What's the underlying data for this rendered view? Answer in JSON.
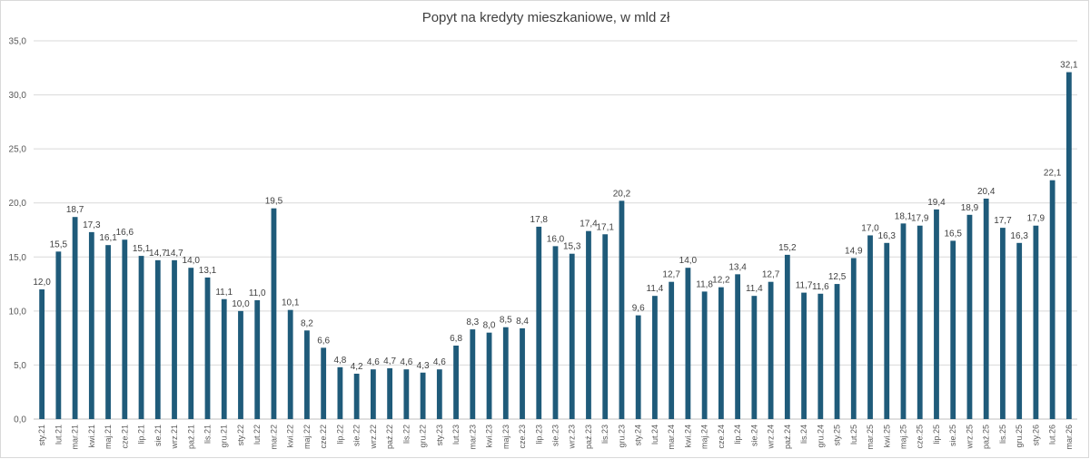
{
  "chart_data": {
    "type": "bar",
    "title": "Popyt na kredyty mieszkaniowe, w mld zł",
    "xlabel": "",
    "ylabel": "",
    "ylim": [
      0,
      35
    ],
    "yticks": [
      "0,0",
      "5,0",
      "10,0",
      "15,0",
      "20,0",
      "25,0",
      "30,0",
      "35,0"
    ],
    "grid": true,
    "bar_color": "#1f5b7a",
    "categories": [
      "sty.21",
      "lut.21",
      "mar.21",
      "kwi.21",
      "maj.21",
      "cze.21",
      "lip.21",
      "sie.21",
      "wrz.21",
      "paź.21",
      "lis.21",
      "gru.21",
      "sty.22",
      "lut.22",
      "mar.22",
      "kwi.22",
      "maj.22",
      "cze.22",
      "lip.22",
      "sie.22",
      "wrz.22",
      "paź.22",
      "lis.22",
      "gru.22",
      "sty.23",
      "lut.23",
      "mar.23",
      "kwi.23",
      "maj.23",
      "cze.23",
      "lip.23",
      "sie.23",
      "wrz.23",
      "paź.23",
      "lis.23",
      "gru.23",
      "sty.24",
      "lut.24",
      "mar.24",
      "kwi.24",
      "maj.24",
      "cze.24",
      "lip.24",
      "sie.24",
      "wrz.24",
      "paź.24",
      "lis.24",
      "gru.24",
      "sty.25",
      "lut.25",
      "mar.25",
      "kwi.25",
      "maj.25",
      "cze.25",
      "lip.25",
      "sie.25",
      "wrz.25",
      "paź.25",
      "lis.25",
      "gru.25",
      "sty.26",
      "lut.26",
      "mar.26"
    ],
    "values": [
      12.0,
      15.5,
      18.7,
      17.3,
      16.1,
      16.6,
      15.1,
      14.7,
      14.7,
      14.0,
      13.1,
      11.1,
      10.0,
      11.0,
      19.5,
      10.1,
      8.2,
      6.6,
      4.8,
      4.2,
      4.6,
      4.7,
      4.6,
      4.3,
      4.6,
      6.8,
      8.3,
      8.0,
      8.5,
      8.4,
      17.8,
      16.0,
      15.3,
      17.4,
      17.1,
      20.2,
      9.6,
      11.4,
      12.7,
      14.0,
      11.8,
      12.2,
      13.4,
      11.4,
      12.7,
      15.2,
      11.7,
      11.6,
      12.5,
      14.9,
      17.0,
      16.3,
      18.1,
      17.9,
      19.4,
      16.5,
      18.9,
      20.4,
      17.7,
      16.3,
      17.9,
      22.1,
      32.1
    ],
    "labels": [
      "12,0",
      "15,5",
      "18,7",
      "17,3",
      "16,1",
      "16,6",
      "15,1",
      "14,7",
      "14,7",
      "14,0",
      "13,1",
      "11,1",
      "10,0",
      "11,0",
      "19,5",
      "10,1",
      "8,2",
      "6,6",
      "4,8",
      "4,2",
      "4,6",
      "4,7",
      "4,6",
      "4,3",
      "4,6",
      "6,8",
      "8,3",
      "8,0",
      "8,5",
      "8,4",
      "17,8",
      "16,0",
      "15,3",
      "17,4",
      "17,1",
      "20,2",
      "9,6",
      "11,4",
      "12,7",
      "14,0",
      "11,8",
      "12,2",
      "13,4",
      "11,4",
      "12,7",
      "15,2",
      "11,7",
      "11,6",
      "12,5",
      "14,9",
      "17,0",
      "16,3",
      "18,1",
      "17,9",
      "19,4",
      "16,5",
      "18,9",
      "20,4",
      "17,7",
      "16,3",
      "17,9",
      "22,1",
      "32,1"
    ]
  }
}
